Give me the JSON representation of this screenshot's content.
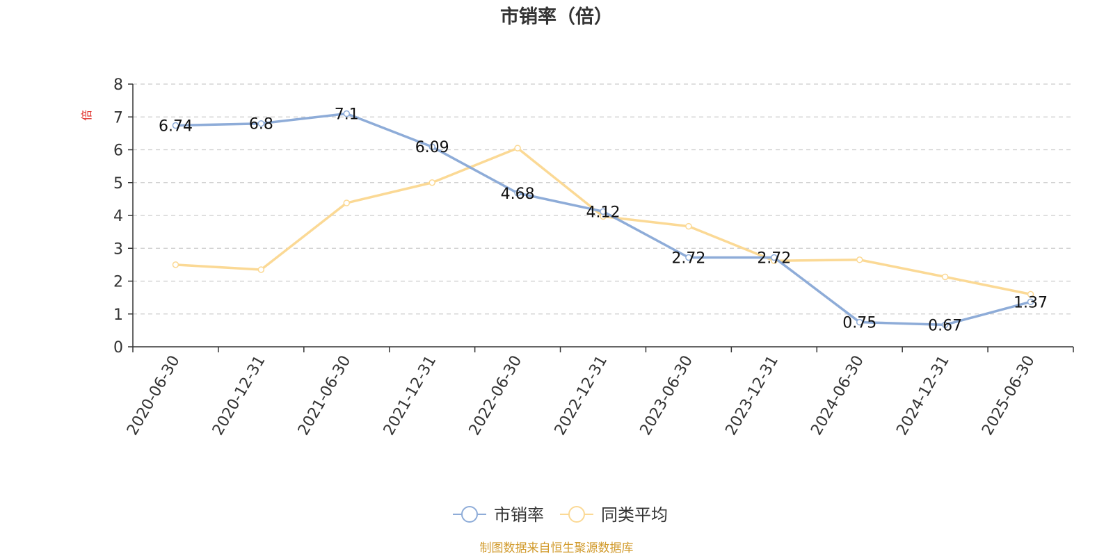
{
  "chart_data": {
    "type": "line",
    "title": "市销率（倍）",
    "ylabel": "倍",
    "ylim": [
      0,
      8
    ],
    "yticks": [
      0,
      1,
      2,
      3,
      4,
      5,
      6,
      7,
      8
    ],
    "grid": true,
    "legend_position": "bottom",
    "categories": [
      "2020-06-30",
      "2020-12-31",
      "2021-06-30",
      "2021-12-31",
      "2022-06-30",
      "2022-12-31",
      "2023-06-30",
      "2023-12-31",
      "2024-06-30",
      "2024-12-31",
      "2025-06-30"
    ],
    "series": [
      {
        "name": "市销率",
        "color": "#8eacd8",
        "values": [
          6.74,
          6.8,
          7.1,
          6.09,
          4.68,
          4.12,
          2.72,
          2.72,
          0.75,
          0.67,
          1.37
        ],
        "labels": [
          "6.74",
          "6.8",
          "7.1",
          "6.09",
          "4.68",
          "4.12",
          "2.72",
          "2.72",
          "0.75",
          "0.67",
          "1.37"
        ]
      },
      {
        "name": "同类平均",
        "color": "#fbd995",
        "values": [
          2.5,
          2.35,
          4.38,
          5.0,
          6.05,
          3.97,
          3.67,
          2.62,
          2.65,
          2.13,
          1.6
        ]
      }
    ],
    "source": "制图数据来自恒生聚源数据库",
    "colors": {
      "ylabel": "#e0302a",
      "source": "#d19a2b",
      "axis": "#333333",
      "grid": "#cccccc"
    }
  }
}
